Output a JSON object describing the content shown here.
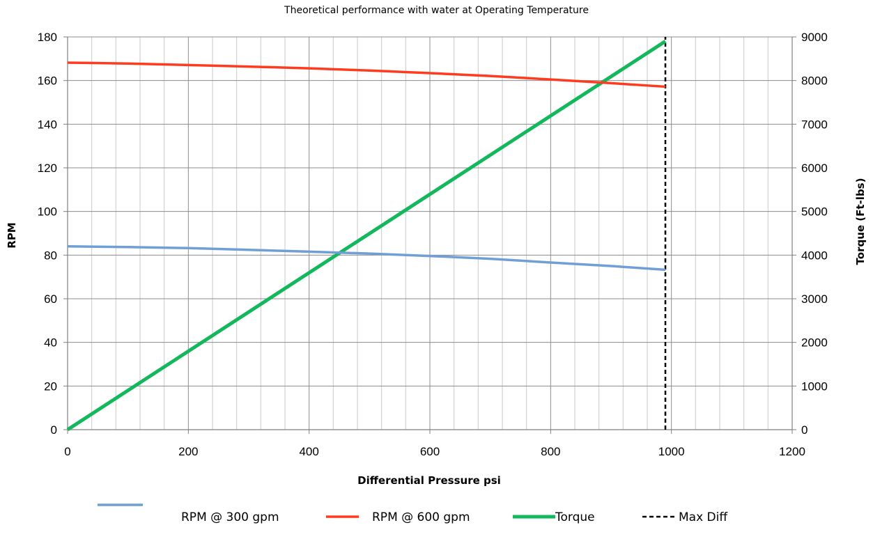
{
  "chart_data": {
    "type": "line",
    "title": "Theoretical performance with water at Operating Temperature",
    "xlabel": "Differential Pressure psi",
    "ylabel": "RPM",
    "y2label": "Torque (Ft-lbs)",
    "xlim": [
      0,
      1200
    ],
    "ylim": [
      0,
      180
    ],
    "y2lim": [
      0,
      9000
    ],
    "x_ticks": [
      0,
      200,
      400,
      600,
      800,
      1000,
      1200
    ],
    "y_ticks": [
      0,
      20,
      40,
      60,
      80,
      100,
      120,
      140,
      160,
      180
    ],
    "y2_ticks": [
      0,
      1000,
      2000,
      3000,
      4000,
      5000,
      6000,
      7000,
      8000,
      9000
    ],
    "grid": true,
    "legend_position": "bottom",
    "series": [
      {
        "name": "RPM @ 300 gpm",
        "axis": "left",
        "color": "#6f9fd4",
        "style": "solid",
        "x": [
          0,
          100,
          200,
          300,
          400,
          500,
          600,
          700,
          800,
          900,
          990
        ],
        "y": [
          84,
          83.7,
          83.2,
          82.4,
          81.6,
          80.7,
          79.6,
          78.3,
          76.6,
          75,
          73.3
        ]
      },
      {
        "name": "RPM @ 600 gpm",
        "axis": "left",
        "color": "#ff3b1f",
        "style": "solid",
        "x": [
          0,
          100,
          200,
          300,
          400,
          500,
          600,
          700,
          800,
          900,
          990
        ],
        "y": [
          168.2,
          167.8,
          167.1,
          166.4,
          165.6,
          164.6,
          163.4,
          162.1,
          160.5,
          158.8,
          157.2
        ]
      },
      {
        "name": "Torque",
        "axis": "right",
        "color": "#13b85c",
        "style": "solid",
        "x": [
          0,
          990
        ],
        "y": [
          0,
          8900
        ]
      },
      {
        "name": "Max Diff",
        "axis": "left",
        "color": "#000000",
        "style": "dashed",
        "x": [
          990,
          990
        ],
        "y": [
          0,
          180
        ]
      }
    ]
  }
}
